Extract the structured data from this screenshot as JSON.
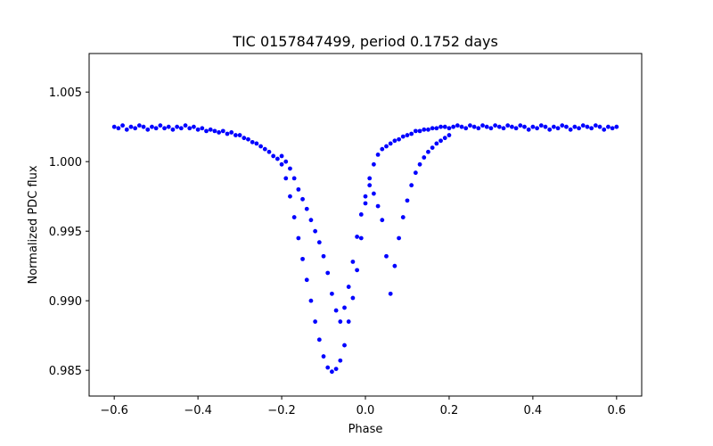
{
  "chart_data": {
    "type": "scatter",
    "title": "TIC 0157847499, period 0.1752 days",
    "xlabel": "Phase",
    "ylabel": "Normalized PDC flux",
    "xlim": [
      -0.66,
      0.66
    ],
    "ylim": [
      0.98315,
      1.00777
    ],
    "xticks": [
      -0.6,
      -0.4,
      -0.2,
      0.0,
      0.2,
      0.4,
      0.6
    ],
    "xtick_labels": [
      "−0.6",
      "−0.4",
      "−0.2",
      "0.0",
      "0.2",
      "0.4",
      "0.6"
    ],
    "yticks": [
      0.985,
      0.99,
      0.995,
      1.0,
      1.005
    ],
    "ytick_labels": [
      "0.985",
      "0.990",
      "0.995",
      "1.000",
      "1.005"
    ],
    "grid": false,
    "marker_color": "#0000ff",
    "series": [
      {
        "name": "",
        "x": [
          -0.6,
          -0.59,
          -0.58,
          -0.57,
          -0.56,
          -0.55,
          -0.54,
          -0.53,
          -0.52,
          -0.51,
          -0.5,
          -0.49,
          -0.48,
          -0.47,
          -0.46,
          -0.45,
          -0.44,
          -0.43,
          -0.42,
          -0.41,
          -0.4,
          -0.39,
          -0.38,
          -0.37,
          -0.36,
          -0.35,
          -0.34,
          -0.33,
          -0.32,
          -0.31,
          -0.3,
          -0.29,
          -0.28,
          -0.27,
          -0.26,
          -0.25,
          -0.24,
          -0.23,
          -0.22,
          -0.21,
          -0.2,
          -0.19,
          -0.18,
          -0.17,
          -0.16,
          -0.15,
          -0.14,
          -0.13,
          -0.12,
          -0.11,
          -0.1,
          -0.09,
          -0.08,
          -0.07,
          -0.06,
          -0.05,
          -0.04,
          -0.03,
          -0.02,
          -0.01,
          0.0,
          0.01,
          0.02,
          0.03,
          0.04,
          0.05,
          0.06,
          0.07,
          0.08,
          0.09,
          0.1,
          0.11,
          0.12,
          0.13,
          0.14,
          0.15,
          0.16,
          0.17,
          0.18,
          0.19,
          0.2,
          0.21,
          0.22,
          0.23,
          0.24,
          0.25,
          0.26,
          0.27,
          0.28,
          0.29,
          0.3,
          0.31,
          0.32,
          0.33,
          0.34,
          0.35,
          0.36,
          0.37,
          0.38,
          0.39,
          0.4,
          0.41,
          0.42,
          0.43,
          0.44,
          0.45,
          0.46,
          0.47,
          0.48,
          0.49,
          0.5,
          0.51,
          0.52,
          0.53,
          0.54,
          0.55,
          0.56,
          0.57,
          0.58,
          0.59,
          0.6
        ],
        "y": [
          1.0025,
          1.0024,
          1.0026,
          1.0023,
          1.0025,
          1.0024,
          1.0026,
          1.0025,
          1.0023,
          1.0025,
          1.0024,
          1.0026,
          1.0024,
          1.0025,
          1.0023,
          1.0025,
          1.0024,
          1.0026,
          1.0024,
          1.0025,
          1.0023,
          1.0024,
          1.0022,
          1.0023,
          1.0022,
          1.0021,
          1.0022,
          1.002,
          1.0021,
          1.0019,
          1.0019,
          1.0017,
          1.0016,
          1.0014,
          1.0013,
          1.0011,
          1.0009,
          1.0007,
          1.0004,
          1.0002,
          0.9998,
          0.9988,
          0.9975,
          0.996,
          0.9945,
          0.993,
          0.9915,
          0.99,
          0.9885,
          0.9872,
          0.986,
          0.9852,
          0.9849,
          0.9851,
          0.9857,
          0.9868,
          0.9885,
          0.9902,
          0.9922,
          0.9945,
          0.997,
          0.9988,
          0.9998,
          1.0005,
          1.0009,
          1.0011,
          1.0013,
          1.0015,
          1.0016,
          1.0018,
          1.0019,
          1.002,
          1.0022,
          1.0022,
          1.0023,
          1.0023,
          1.0024,
          1.0024,
          1.0025,
          1.0025,
          1.0024,
          1.0025,
          1.0026,
          1.0025,
          1.0024,
          1.0026,
          1.0025,
          1.0024,
          1.0026,
          1.0025,
          1.0024,
          1.0026,
          1.0025,
          1.0024,
          1.0026,
          1.0025,
          1.0024,
          1.0026,
          1.0025,
          1.0023,
          1.0025,
          1.0024,
          1.0026,
          1.0025,
          1.0023,
          1.0025,
          1.0024,
          1.0026,
          1.0025,
          1.0023,
          1.0025,
          1.0024,
          1.0026,
          1.0025,
          1.0024,
          1.0026,
          1.0025,
          1.0023,
          1.0025,
          1.0024,
          1.0025
        ]
      },
      {
        "name": "",
        "x": [
          -0.2,
          -0.19,
          -0.18,
          -0.17,
          -0.16,
          -0.15,
          -0.14,
          -0.13,
          -0.12,
          -0.11,
          -0.1,
          -0.09,
          -0.08,
          -0.07,
          -0.06,
          -0.05,
          -0.04,
          -0.03,
          -0.02,
          -0.01,
          0.0,
          0.01,
          0.02,
          0.03,
          0.04,
          0.05,
          0.06,
          0.07,
          0.08,
          0.09,
          0.1,
          0.11,
          0.12,
          0.13,
          0.14,
          0.15,
          0.16,
          0.17,
          0.18,
          0.19,
          0.2
        ],
        "y": [
          1.0004,
          1.0,
          0.9995,
          0.9988,
          0.998,
          0.9973,
          0.9966,
          0.9958,
          0.995,
          0.9942,
          0.9932,
          0.992,
          0.9905,
          0.9893,
          0.9885,
          0.9895,
          0.991,
          0.9928,
          0.9946,
          0.9962,
          0.9975,
          0.9983,
          0.9977,
          0.9968,
          0.9958,
          0.9932,
          0.9905,
          0.9925,
          0.9945,
          0.996,
          0.9972,
          0.9983,
          0.9992,
          0.9998,
          1.0003,
          1.0007,
          1.001,
          1.0013,
          1.0015,
          1.0017,
          1.0019
        ]
      }
    ]
  }
}
